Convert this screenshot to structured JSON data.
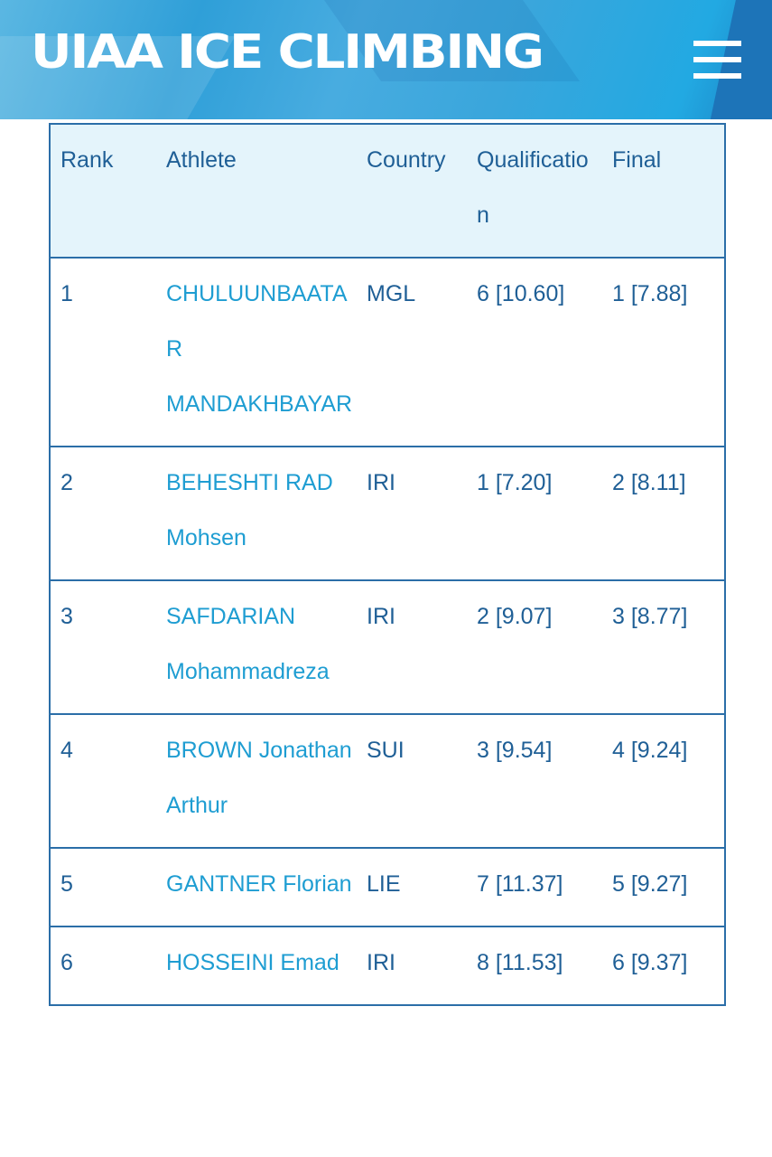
{
  "header": {
    "title": "UIAA ICE CLIMBING",
    "menu_icon": "hamburger-icon"
  },
  "colors": {
    "banner": "#2f9fd8",
    "header_bg": "#e4f4fb",
    "border": "#2b6ea8",
    "text": "#1f5f96",
    "link": "#1e9dd2"
  },
  "table": {
    "columns": [
      "Rank",
      "Athlete",
      "Country",
      "Qualification",
      "Final"
    ],
    "rows": [
      {
        "rank": "1",
        "athlete": "CHULUUNBAATAR MANDAKHBAYAR",
        "country": "MGL",
        "qualification": "6 [10.60]",
        "final": "1 [7.88]"
      },
      {
        "rank": "2",
        "athlete": "BEHESHTI RAD Mohsen",
        "country": "IRI",
        "qualification": "1 [7.20]",
        "final": "2 [8.11]"
      },
      {
        "rank": "3",
        "athlete": "SAFDARIAN Mohammadreza",
        "country": "IRI",
        "qualification": "2 [9.07]",
        "final": "3 [8.77]"
      },
      {
        "rank": "4",
        "athlete": "BROWN Jonathan Arthur",
        "country": "SUI",
        "qualification": "3 [9.54]",
        "final": "4 [9.24]"
      },
      {
        "rank": "5",
        "athlete": "GANTNER Florian",
        "country": "LIE",
        "qualification": "7 [11.37]",
        "final": "5 [9.27]"
      },
      {
        "rank": "6",
        "athlete": "HOSSEINI Emad",
        "country": "IRI",
        "qualification": "8 [11.53]",
        "final": "6 [9.37]"
      }
    ]
  }
}
